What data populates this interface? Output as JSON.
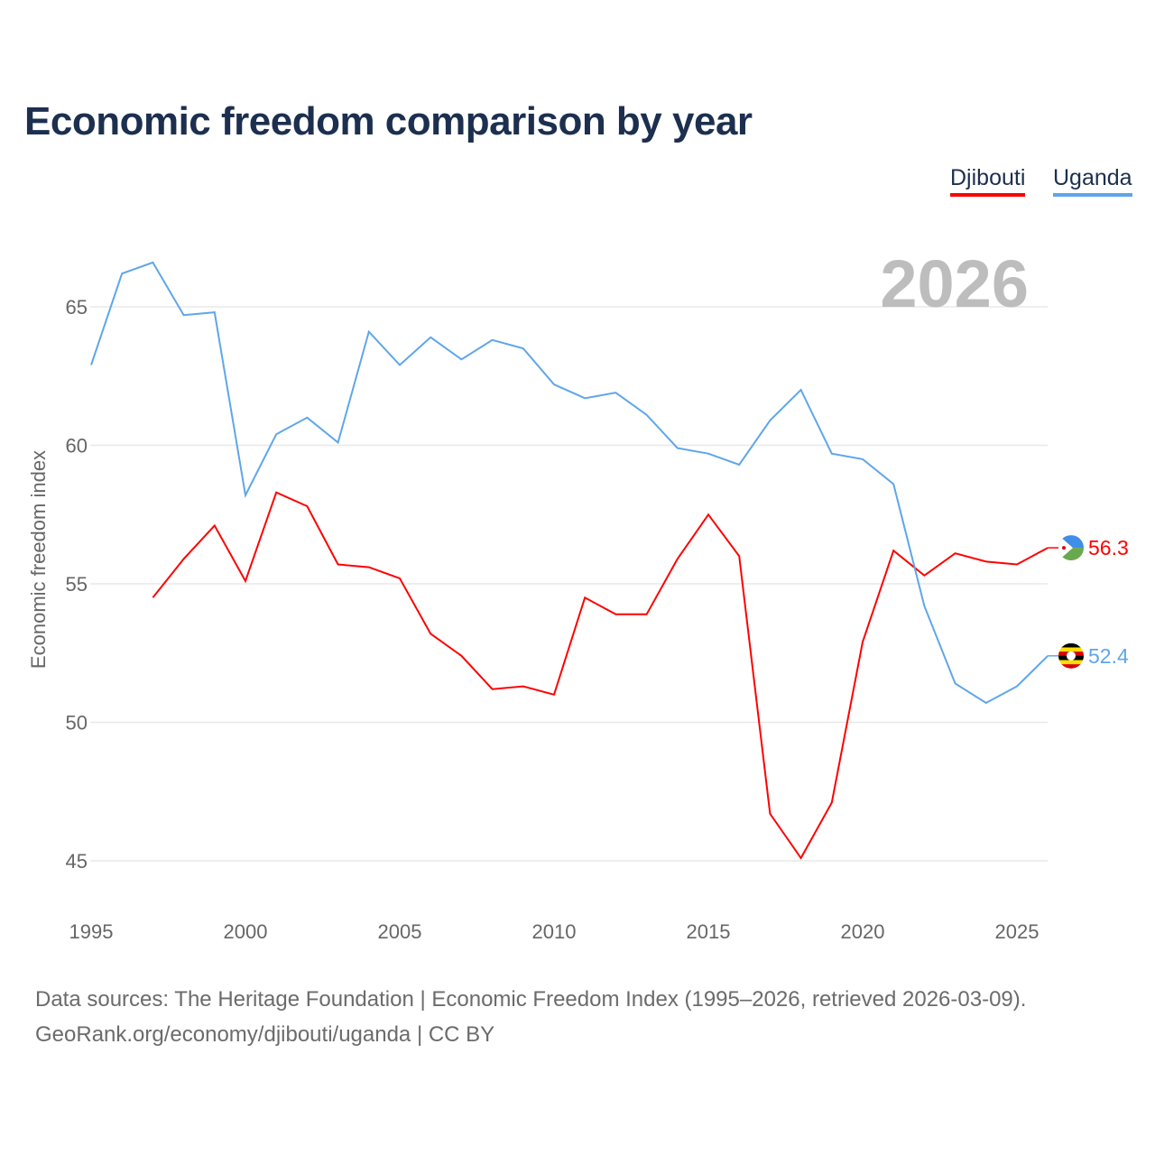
{
  "title": "Economic freedom comparison by year",
  "legend": [
    "Djibouti",
    "Uganda"
  ],
  "year_watermark": "2026",
  "footer": {
    "line1": "Data sources: The Heritage Foundation | Economic Freedom Index (1995–2026, retrieved 2026-03-09).",
    "line2": "GeoRank.org/economy/djibouti/uganda | CC BY"
  },
  "chart_data": {
    "type": "line",
    "title": "Economic freedom comparison by year",
    "xlabel": "",
    "ylabel": "Economic freedom index",
    "xlim": [
      1995,
      2026
    ],
    "ylim": [
      43.8,
      67.5
    ],
    "xticks": [
      1995,
      2000,
      2005,
      2010,
      2015,
      2020,
      2025
    ],
    "yticks": [
      45,
      50,
      55,
      60,
      65
    ],
    "grid": true,
    "legend_position": "top-right",
    "series": [
      {
        "name": "Djibouti",
        "color": "#ff0000",
        "end_label": "56.3",
        "x": [
          1997,
          1998,
          1999,
          2000,
          2001,
          2002,
          2003,
          2004,
          2005,
          2006,
          2007,
          2008,
          2009,
          2010,
          2011,
          2012,
          2013,
          2014,
          2015,
          2016,
          2017,
          2018,
          2019,
          2020,
          2021,
          2022,
          2023,
          2024,
          2025,
          2026
        ],
        "values": [
          54.5,
          55.9,
          57.1,
          55.1,
          58.3,
          57.8,
          55.7,
          55.6,
          55.2,
          53.2,
          52.4,
          51.2,
          51.3,
          51.0,
          54.5,
          53.9,
          53.9,
          55.9,
          57.5,
          56.0,
          46.7,
          45.1,
          47.1,
          52.9,
          56.2,
          55.3,
          56.1,
          55.8,
          55.7,
          56.3
        ]
      },
      {
        "name": "Uganda",
        "color": "#5ea6ea",
        "end_label": "52.4",
        "x": [
          1995,
          1996,
          1997,
          1998,
          1999,
          2000,
          2001,
          2002,
          2003,
          2004,
          2005,
          2006,
          2007,
          2008,
          2009,
          2010,
          2011,
          2012,
          2013,
          2014,
          2015,
          2016,
          2017,
          2018,
          2019,
          2020,
          2021,
          2022,
          2023,
          2024,
          2025,
          2026
        ],
        "values": [
          62.9,
          66.2,
          66.6,
          64.7,
          64.8,
          58.2,
          60.4,
          61.0,
          60.1,
          64.1,
          62.9,
          63.9,
          63.1,
          63.8,
          63.5,
          62.2,
          61.7,
          61.9,
          61.1,
          59.9,
          59.7,
          59.3,
          60.9,
          62.0,
          59.7,
          59.5,
          58.6,
          54.2,
          51.4,
          50.7,
          51.3,
          52.4
        ]
      }
    ]
  }
}
